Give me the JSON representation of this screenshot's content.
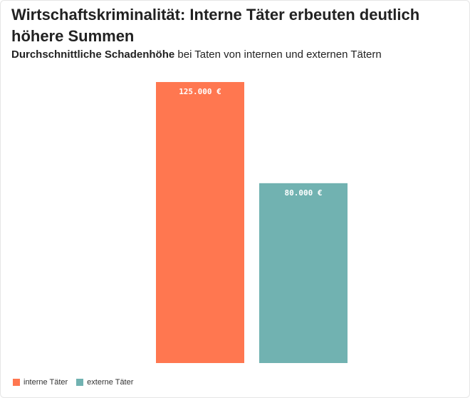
{
  "title": "Wirtschaftskriminalität: Interne Täter erbeuten deutlich höhere Summen",
  "subtitle": {
    "strong": "Durchschnittliche Schadenhöhe",
    "rest": " bei Taten von internen und externen Tätern"
  },
  "legend": [
    {
      "label": "interne Täter",
      "color": "#ff7750"
    },
    {
      "label": "externe Täter",
      "color": "#71b2b1"
    }
  ],
  "chart_data": {
    "type": "bar",
    "categories": [
      "interne Täter",
      "externe Täter"
    ],
    "values": [
      125000,
      80000
    ],
    "value_labels": [
      "125.000 €",
      "80.000 €"
    ],
    "colors": [
      "#ff7750",
      "#71b2b1"
    ],
    "title": "Wirtschaftskriminalität: Interne Täter erbeuten deutlich höhere Summen",
    "subtitle": "Durchschnittliche Schadenhöhe bei Taten von internen und externen Tätern",
    "xlabel": "",
    "ylabel": "",
    "ylim": [
      0,
      125000
    ],
    "grid": false,
    "legend_position": "bottom-left"
  }
}
